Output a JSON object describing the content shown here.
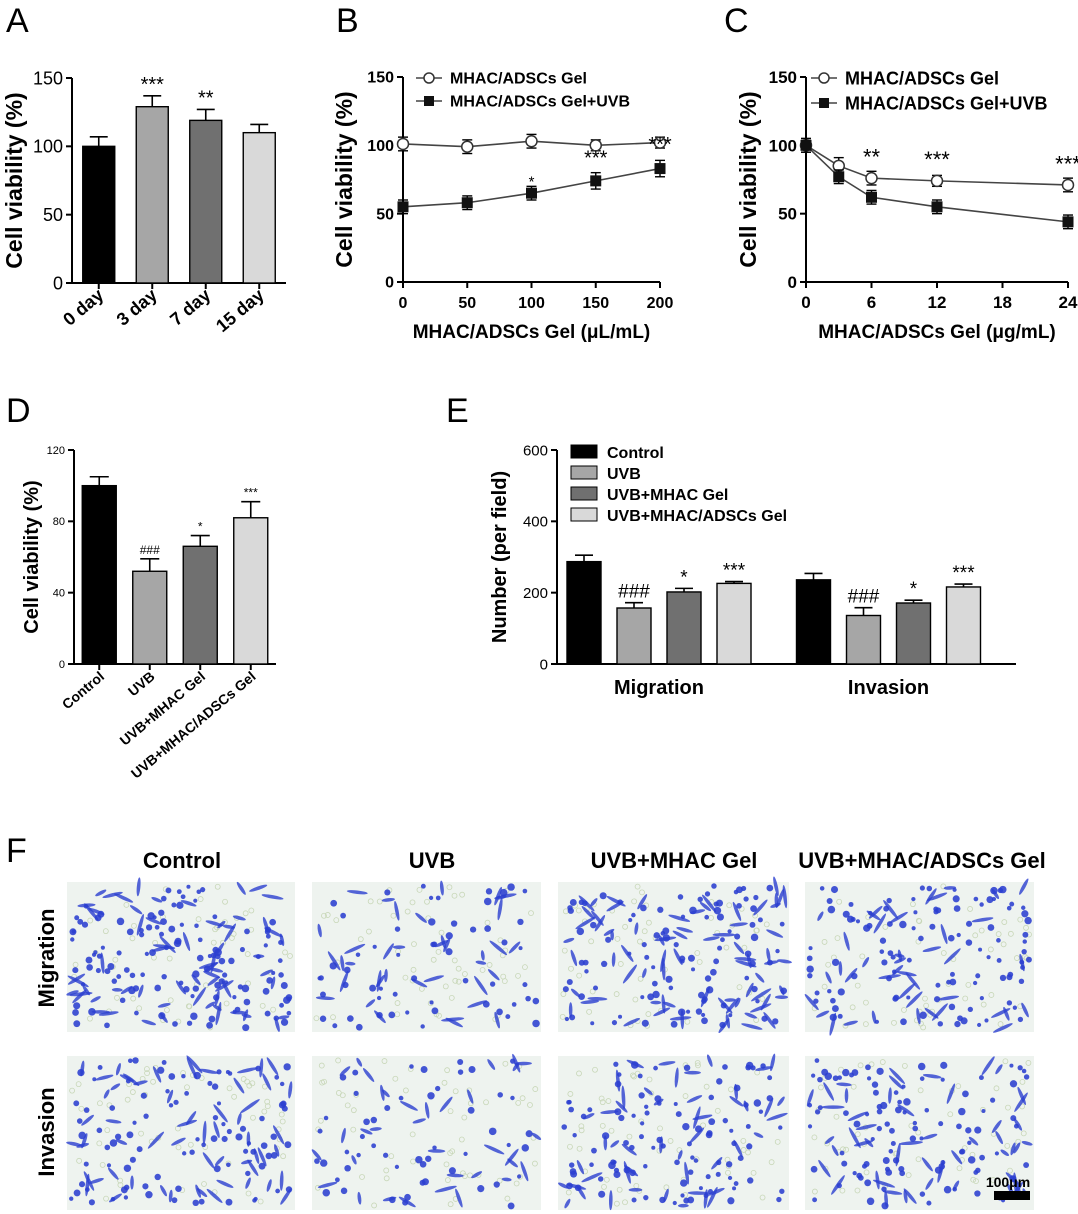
{
  "panels": {
    "A": {
      "letter": "A",
      "chart_data": {
        "type": "bar",
        "categories": [
          "0 day",
          "3 day",
          "7 day",
          "15 day"
        ],
        "values": [
          100,
          129,
          119,
          110
        ],
        "errors": [
          7,
          8,
          8,
          6
        ],
        "colors": [
          "#000000",
          "#a6a6a6",
          "#707070",
          "#d9d9d9"
        ],
        "sig": [
          "",
          "***",
          "**",
          ""
        ],
        "ylabel": "Cell viability (%)",
        "xlabel": "",
        "ylim": [
          0,
          150
        ],
        "yticks": [
          0,
          50,
          100,
          150
        ]
      }
    },
    "B": {
      "letter": "B",
      "chart_data": {
        "type": "line",
        "x": [
          0,
          50,
          100,
          150,
          200
        ],
        "series": [
          {
            "name": "MHAC/ADSCs Gel",
            "values": [
              101,
              99,
              103,
              100,
              102
            ],
            "errors": [
              5,
              5,
              5,
              4,
              4
            ],
            "marker": "open-circle"
          },
          {
            "name": "MHAC/ADSCs Gel+UVB",
            "values": [
              55,
              58,
              65,
              74,
              83
            ],
            "errors": [
              5,
              5,
              5,
              6,
              6
            ],
            "marker": "filled-square"
          }
        ],
        "sig": [
          "",
          "",
          "*",
          "***",
          "***"
        ],
        "xlabel": "MHAC/ADSCs Gel (μL/mL)",
        "ylabel": "Cell viability (%)",
        "xlim": [
          0,
          200
        ],
        "ylim": [
          0,
          150
        ],
        "xticks": [
          0,
          50,
          100,
          150,
          200
        ],
        "yticks": [
          0,
          50,
          100,
          150
        ],
        "legend": "top-left"
      }
    },
    "C": {
      "letter": "C",
      "chart_data": {
        "type": "line",
        "x": [
          0,
          3,
          6,
          12,
          24
        ],
        "series": [
          {
            "name": "MHAC/ADSCs Gel",
            "values": [
              100,
              85,
              76,
              74,
              71
            ],
            "errors": [
              5,
              6,
              5,
              4,
              5
            ],
            "marker": "open-circle"
          },
          {
            "name": "MHAC/ADSCs Gel+UVB",
            "values": [
              100,
              77,
              62,
              55,
              44
            ],
            "errors": [
              5,
              5,
              5,
              5,
              5
            ],
            "marker": "filled-square"
          }
        ],
        "sig": [
          "",
          "",
          "**",
          "***",
          "***"
        ],
        "xlabel": "MHAC/ADSCs Gel (μg/mL)",
        "ylabel": "Cell viability (%)",
        "xlim": [
          0,
          24
        ],
        "ylim": [
          0,
          150
        ],
        "xticks": [
          0,
          6,
          12,
          18,
          24
        ],
        "yticks": [
          0,
          50,
          100,
          150
        ],
        "legend": "top"
      }
    },
    "D": {
      "letter": "D",
      "chart_data": {
        "type": "bar",
        "categories": [
          "Control",
          "UVB",
          "UVB+MHAC Gel",
          "UVB+MHAC/ADSCs Gel"
        ],
        "values": [
          100,
          52,
          66,
          82
        ],
        "errors": [
          5,
          7,
          6,
          9
        ],
        "colors": [
          "#000000",
          "#a6a6a6",
          "#707070",
          "#d9d9d9"
        ],
        "sig": [
          "",
          "###",
          "*",
          "***"
        ],
        "ylabel": "Cell viability (%)",
        "xlabel": "",
        "ylim": [
          0,
          120
        ],
        "yticks": [
          0,
          40,
          80,
          120
        ]
      }
    },
    "E": {
      "letter": "E",
      "chart_data": {
        "type": "bar",
        "categories": [
          "Migration",
          "Invasion"
        ],
        "series": [
          {
            "name": "Control",
            "values": [
              287,
              236
            ],
            "errors": [
              18,
              18
            ],
            "color": "#000000",
            "sig": [
              "",
              ""
            ]
          },
          {
            "name": "UVB",
            "values": [
              157,
              136
            ],
            "errors": [
              15,
              22
            ],
            "color": "#a6a6a6",
            "sig": [
              "###",
              "###"
            ]
          },
          {
            "name": "UVB+MHAC Gel",
            "values": [
              202,
              171
            ],
            "errors": [
              10,
              8
            ],
            "color": "#707070",
            "sig": [
              "*",
              "*"
            ]
          },
          {
            "name": "UVB+MHAC/ADSCs Gel",
            "values": [
              226,
              216
            ],
            "errors": [
              5,
              8
            ],
            "color": "#d9d9d9",
            "sig": [
              "***",
              "***"
            ]
          }
        ],
        "ylabel": "Number (per field)",
        "xlabel": "",
        "ylim": [
          0,
          600
        ],
        "yticks": [
          0,
          200,
          400,
          600
        ],
        "legend": "top-left"
      }
    },
    "F": {
      "letter": "F",
      "columns": [
        "Control",
        "UVB",
        "UVB+MHAC Gel",
        "UVB+MHAC/ADSCs Gel"
      ],
      "rows": [
        "Migration",
        "Invasion"
      ],
      "scale_bar": "100μm",
      "cell_color": "#2b3fd0",
      "background_color": "#eef3ef"
    }
  }
}
